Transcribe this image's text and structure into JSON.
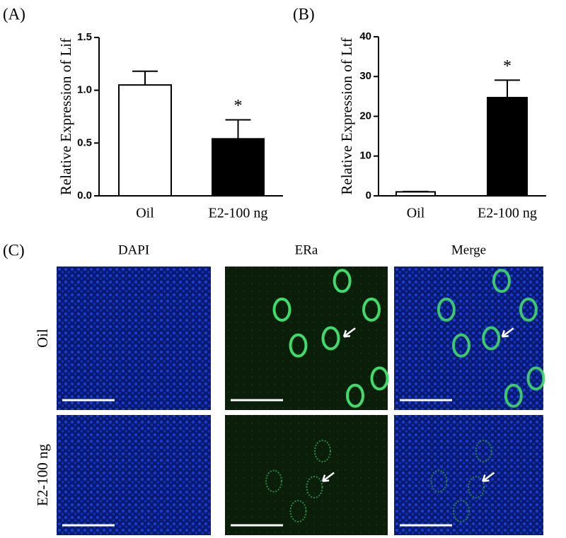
{
  "chart_data": [
    {
      "type": "bar",
      "panel": "(A)",
      "ylabel": "Relative Expression of Lif",
      "categories": [
        "Oil",
        "E2-100 ng"
      ],
      "values": [
        1.05,
        0.54
      ],
      "errors": [
        0.13,
        0.18
      ],
      "colors": [
        "#ffffff",
        "#000000"
      ],
      "edgecolor": "#000000",
      "ylim": [
        0,
        1.5
      ],
      "yticks": [
        {
          "value": 0,
          "label": "0.0"
        },
        0.5,
        {
          "value": 1,
          "label": "1.0"
        },
        1.5
      ],
      "annotations": [
        {
          "category": "E2-100 ng",
          "text": "*"
        }
      ]
    },
    {
      "type": "bar",
      "panel": "(B)",
      "ylabel": "Relative Expression of Ltf",
      "categories": [
        "Oil",
        "E2-100 ng"
      ],
      "values": [
        1.0,
        24.7
      ],
      "errors": [
        0.1,
        4.4
      ],
      "colors": [
        "#ffffff",
        "#000000"
      ],
      "edgecolor": "#000000",
      "ylim": [
        0,
        40
      ],
      "yticks": [
        0,
        10,
        20,
        30,
        40
      ],
      "annotations": [
        {
          "category": "E2-100 ng",
          "text": "*"
        }
      ]
    }
  ],
  "panel_c": {
    "label": "(C)",
    "columns": [
      "DAPI",
      "ERa",
      "Merge"
    ],
    "rows": [
      "Oil",
      "E2-100 ng"
    ]
  }
}
